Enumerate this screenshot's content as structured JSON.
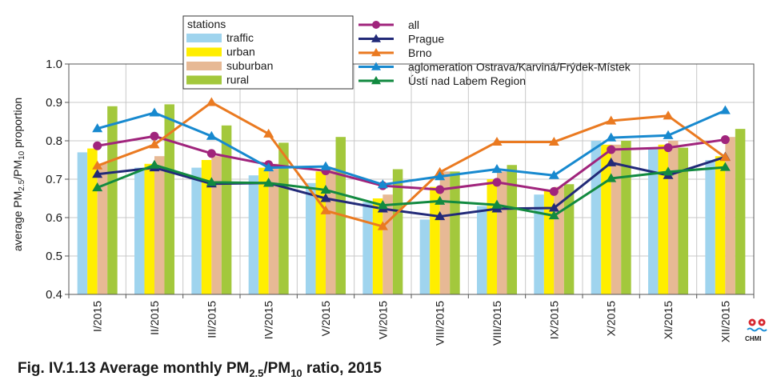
{
  "chart_data": {
    "type": "bar",
    "categories": [
      "I/2015",
      "II/2015",
      "III/2015",
      "IV/2015",
      "V/2015",
      "VI/2015",
      "VIII/2015",
      "VIII/2015",
      "IX/2015",
      "X/2015",
      "XI/2015",
      "XII/2015"
    ],
    "ylabel": "average PM2.5/PM10 proportion",
    "ylabel_parts": [
      "average PM",
      "2.5",
      "/PM",
      "10",
      " proportion"
    ],
    "ylim": [
      0.4,
      1.0
    ],
    "yticks": [
      "0.4",
      "0.5",
      "0.6",
      "0.7",
      "0.8",
      "0.9",
      "1.0"
    ],
    "grid": true,
    "legend_position": "top",
    "legend_title": "stations",
    "bar_series": [
      {
        "name": "traffic",
        "color": "#9fd4ee",
        "values": [
          0.77,
          0.73,
          0.73,
          0.71,
          0.69,
          0.64,
          0.595,
          0.63,
          0.66,
          0.8,
          0.78,
          0.75
        ]
      },
      {
        "name": "urban",
        "color": "#ffee00",
        "values": [
          0.78,
          0.74,
          0.75,
          0.73,
          0.72,
          0.65,
          0.68,
          0.7,
          0.67,
          0.79,
          0.79,
          0.76
        ]
      },
      {
        "name": "suburban",
        "color": "#e7b995",
        "values": [
          0.74,
          0.76,
          0.76,
          0.74,
          0.73,
          0.66,
          0.72,
          0.72,
          0.68,
          0.79,
          0.8,
          0.81
        ]
      },
      {
        "name": "rural",
        "color": "#a3c83c",
        "values": [
          0.89,
          0.895,
          0.84,
          0.795,
          0.81,
          0.726,
          0.72,
          0.737,
          0.687,
          0.8,
          0.782,
          0.831
        ]
      }
    ],
    "line_series": [
      {
        "name": "all",
        "color": "#a0247c",
        "marker": "circle",
        "values": [
          0.787,
          0.812,
          0.767,
          0.738,
          0.722,
          0.683,
          0.673,
          0.692,
          0.668,
          0.777,
          0.782,
          0.803
        ]
      },
      {
        "name": "Prague",
        "color": "#222a78",
        "marker": "triangle",
        "values": [
          0.713,
          0.73,
          0.688,
          0.69,
          0.65,
          0.623,
          0.603,
          0.623,
          0.625,
          0.743,
          0.71,
          0.758
        ]
      },
      {
        "name": "Brno",
        "color": "#ea7a21",
        "marker": "triangle",
        "values": [
          0.735,
          0.79,
          0.9,
          0.818,
          0.618,
          0.577,
          0.718,
          0.797,
          0.797,
          0.852,
          0.865,
          0.757
        ]
      },
      {
        "name": "aglomeration Ostrava/Karviná/Frýdek-Místek",
        "color": "#1789cf",
        "marker": "triangle",
        "values": [
          0.832,
          0.873,
          0.812,
          0.73,
          0.733,
          0.686,
          0.707,
          0.726,
          0.71,
          0.808,
          0.814,
          0.879
        ]
      },
      {
        "name": "Ústí nad Labem Region",
        "color": "#128a40",
        "marker": "triangle",
        "values": [
          0.678,
          0.737,
          0.692,
          0.69,
          0.672,
          0.632,
          0.643,
          0.633,
          0.605,
          0.702,
          0.719,
          0.731
        ]
      }
    ]
  },
  "caption": {
    "prefix": "Fig. IV.1.13  Average monthly PM",
    "sub1": "2.5",
    "mid": "/PM",
    "sub2": "10",
    "suffix": " ratio, 2015"
  },
  "logo": {
    "text": "CHMI"
  }
}
